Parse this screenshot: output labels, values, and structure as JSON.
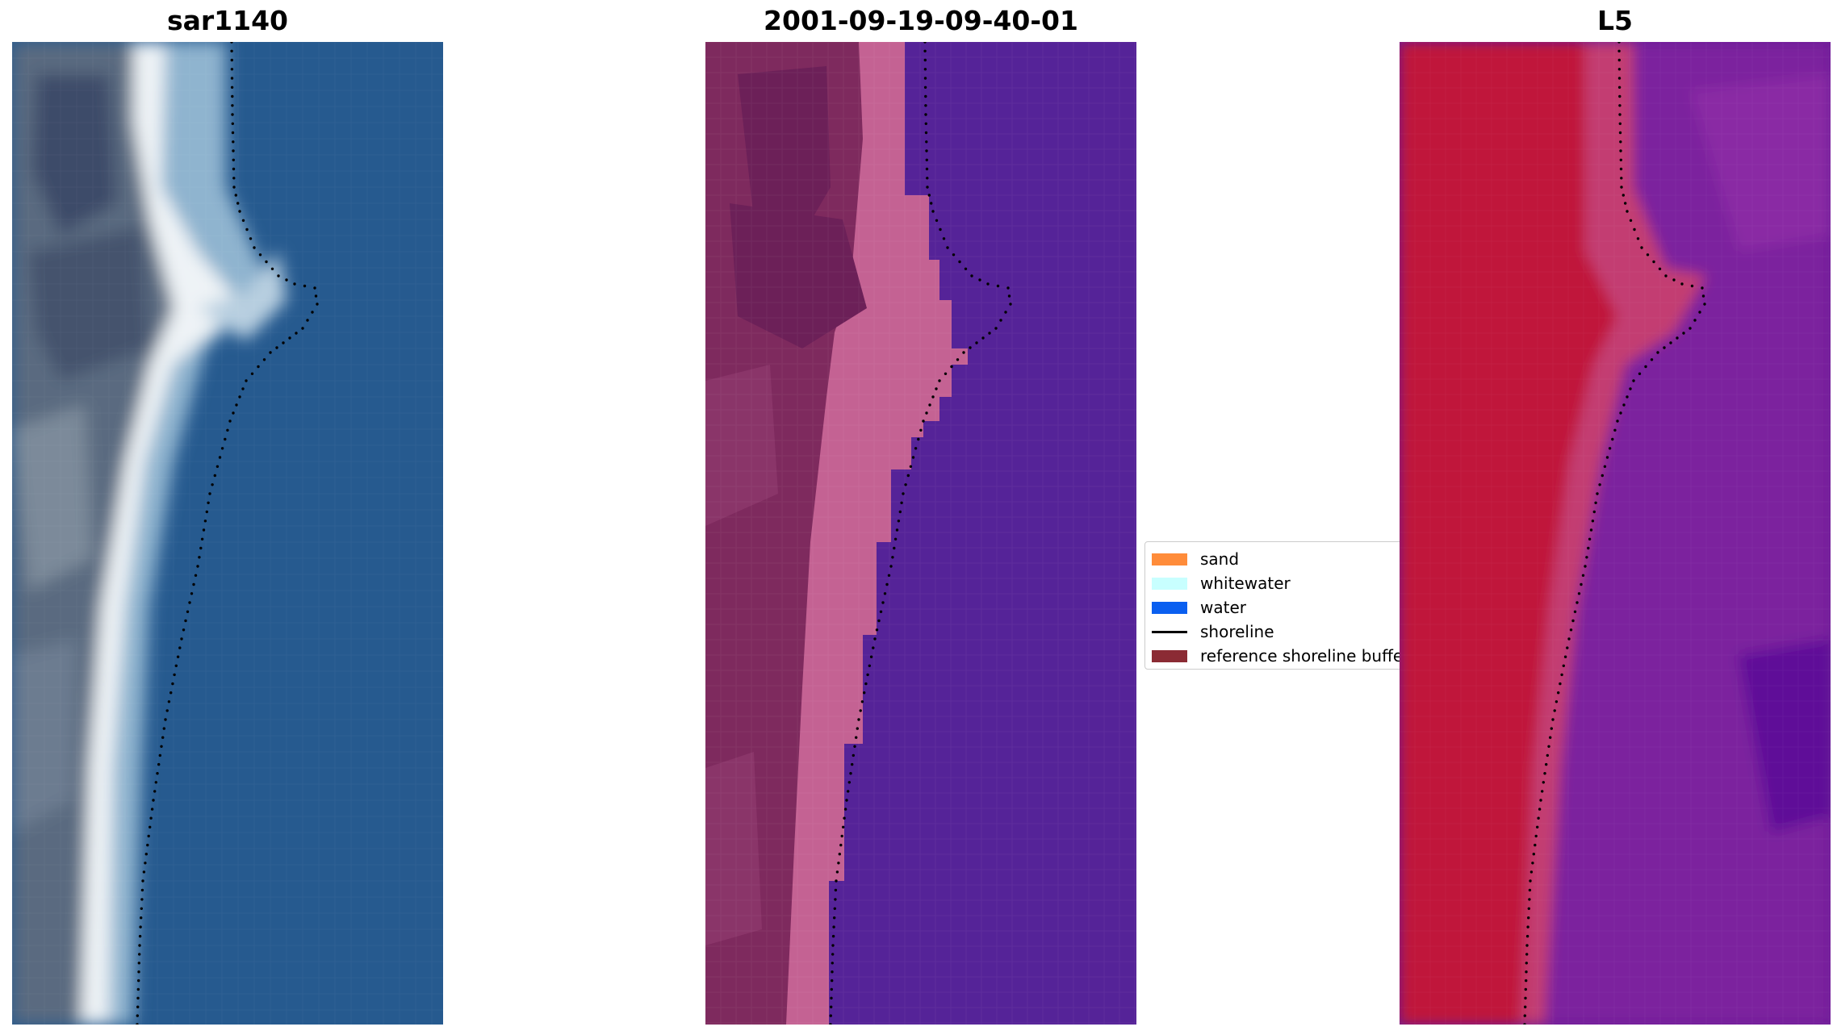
{
  "panels": {
    "left_title": "sar1140",
    "center_title": "2001-09-19-09-40-01",
    "right_title": "L5"
  },
  "legend": {
    "items": [
      {
        "label": "sand",
        "type": "patch",
        "color": "#ff8c3a"
      },
      {
        "label": "whitewater",
        "type": "patch",
        "color": "#c8ffff"
      },
      {
        "label": "water",
        "type": "patch",
        "color": "#0a5ff0"
      },
      {
        "label": "shoreline",
        "type": "line",
        "color": "#000000"
      },
      {
        "label": "reference shoreline buffer",
        "type": "patch",
        "color": "#8b2b34"
      }
    ]
  },
  "colors": {
    "rgb_water": "#265a8f",
    "class_water": "#552398",
    "class_land": "#7e2a5e",
    "class_beach": "#c46293",
    "index_land": "#c0143a",
    "index_water": "#6a1996",
    "shoreline_dots": "#000000"
  }
}
